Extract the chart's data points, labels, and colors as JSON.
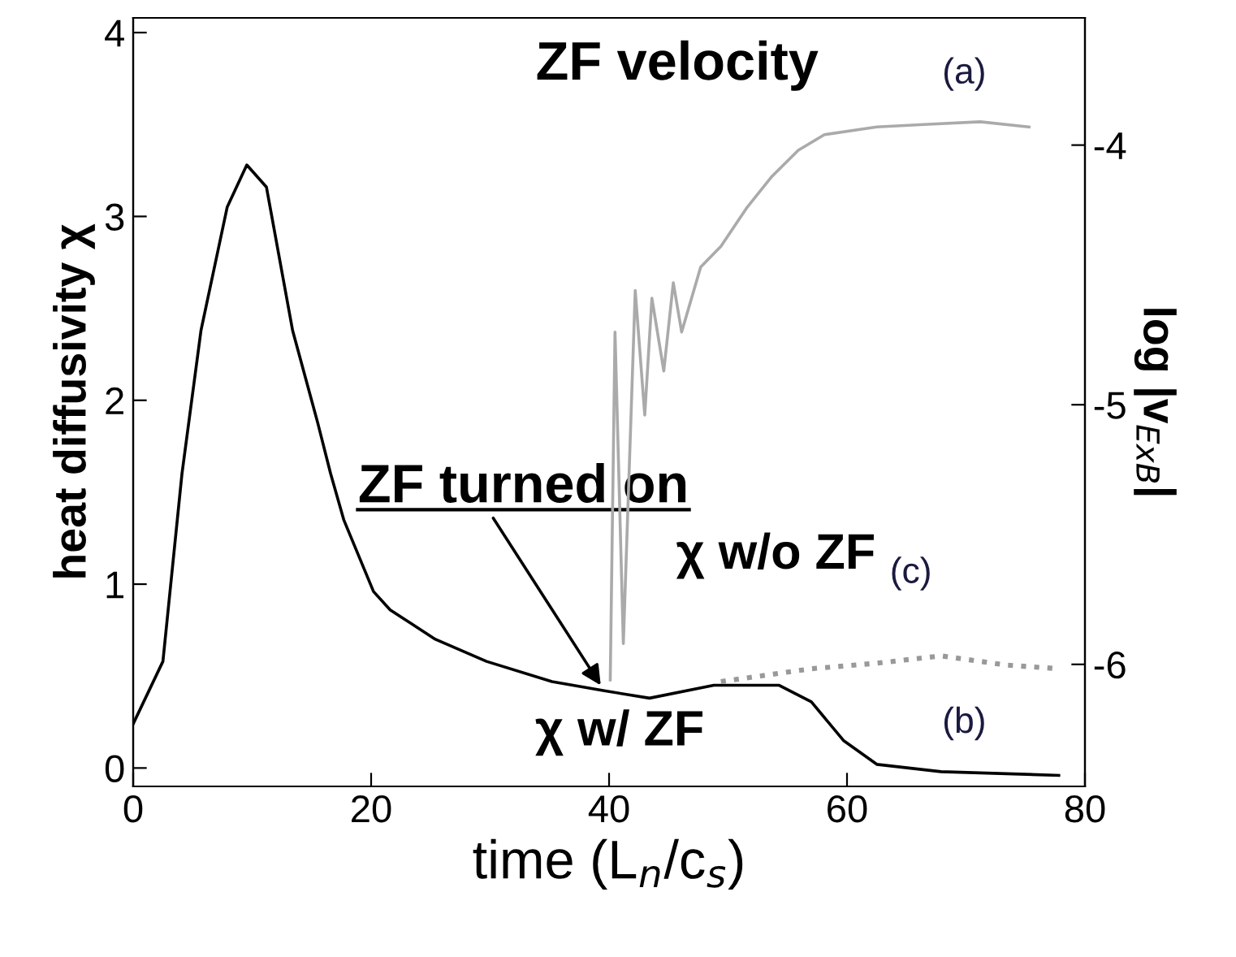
{
  "chart_data": {
    "type": "line",
    "xlabel": "time (L$_{n}$/c$_{s}$)",
    "ylabel": "heat diffusivity χ",
    "y2label": "log |v$_{ExB}$|",
    "xlim": [
      0,
      80
    ],
    "xticks": [
      0,
      20,
      40,
      60,
      80
    ],
    "ylim": [
      -0.1,
      4.08
    ],
    "yticks": [
      0,
      1,
      2,
      3,
      4
    ],
    "y2lim": [
      -6.47,
      -3.51
    ],
    "y2ticks": [
      -6,
      -5,
      -4
    ],
    "grid": false,
    "legend": false,
    "line_style": "solid",
    "series": [
      {
        "color": "#000000",
        "x": [
          0,
          2.5,
          4.1,
          5.7,
          7.9,
          9.55,
          11.2,
          13.4,
          15.5,
          16.6,
          17.7,
          20.2,
          21.6,
          25.4,
          29.7,
          35.2,
          39.6,
          43.4,
          48.8,
          54.3,
          57,
          59.7,
          62.5,
          67.9,
          77.8
        ],
        "values": [
          0.24,
          0.58,
          1.6,
          2.38,
          3.05,
          3.28,
          3.16,
          2.38,
          1.88,
          1.6,
          1.35,
          0.96,
          0.86,
          0.7,
          0.58,
          0.47,
          0.42,
          0.38,
          0.45,
          0.45,
          0.36,
          0.15,
          0.02,
          -0.02,
          -0.04
        ]
      },
      {
        "color": "#999999",
        "line_style": "dotted",
        "x": [
          49.4,
          57,
          62.5,
          67.9,
          73.4,
          77.8
        ],
        "values": [
          0.47,
          0.54,
          0.57,
          0.61,
          0.56,
          0.54
        ]
      },
      {
        "color": "#aaaaaa",
        "axis": "y2",
        "x": [
          40.1,
          40.5,
          41.2,
          42.2,
          43.0,
          43.6,
          44.6,
          45.4,
          46.1,
          47.7,
          49.4,
          51.6,
          53.7,
          55.9,
          58.1,
          62.5,
          66.8,
          71.2,
          75.3
        ],
        "values": [
          -6.06,
          -4.72,
          -5.92,
          -4.56,
          -5.04,
          -4.59,
          -4.87,
          -4.53,
          -4.72,
          -4.47,
          -4.39,
          -4.24,
          -4.12,
          -4.02,
          -3.96,
          -3.93,
          -3.92,
          -3.91,
          -3.93
        ]
      }
    ],
    "annotations": [
      "ZF velocity",
      "(a)",
      "χ w/o ZF",
      "(c)",
      "χ w/ ZF",
      "(b)",
      {
        "text": "ZF turned on",
        "x": 39.3,
        "y": 0.45
      }
    ]
  }
}
